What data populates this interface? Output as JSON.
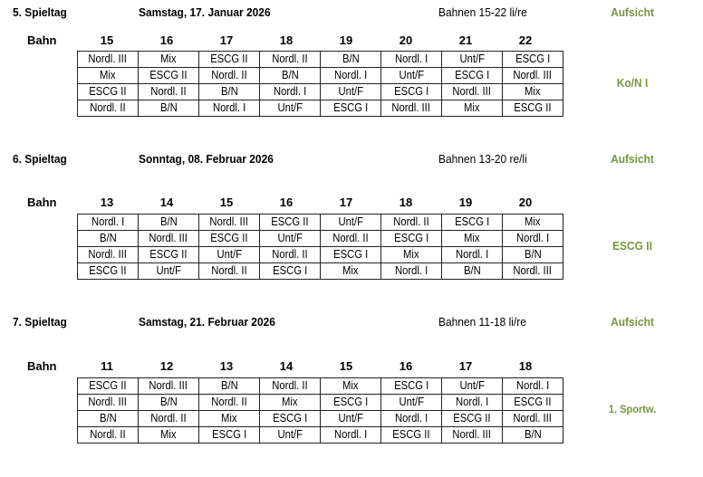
{
  "bahn_label": "Bahn",
  "sections": [
    {
      "title": "5. Spieltag",
      "date": "Samstag, 17. Januar 2026",
      "lanes": "Bahnen 15-22 li/re",
      "supervision_label": "Aufsicht",
      "supervisor": "Ko/N I",
      "columns": [
        "15",
        "16",
        "17",
        "18",
        "19",
        "20",
        "21",
        "22"
      ],
      "rows": [
        [
          "Nordl. III",
          "Mix",
          "ESCG II",
          "Nordl. II",
          "B/N",
          "Nordl. I",
          "Unt/F",
          "ESCG I"
        ],
        [
          "Mix",
          "ESCG II",
          "Nordl. II",
          "B/N",
          "Nordl. I",
          "Unt/F",
          "ESCG I",
          "Nordl. III"
        ],
        [
          "ESCG II",
          "Nordl. II",
          "B/N",
          "Nordl. I",
          "Unt/F",
          "ESCG I",
          "Nordl. III",
          "Mix"
        ],
        [
          "Nordl. II",
          "B/N",
          "Nordl. I",
          "Unt/F",
          "ESCG I",
          "Nordl. III",
          "Mix",
          "ESCG II"
        ]
      ]
    },
    {
      "title": "6. Spieltag",
      "date": "Sonntag, 08. Februar 2026",
      "lanes": "Bahnen 13-20 re/li",
      "supervision_label": "Aufsicht",
      "supervisor": "ESCG II",
      "columns": [
        "13",
        "14",
        "15",
        "16",
        "17",
        "18",
        "19",
        "20"
      ],
      "rows": [
        [
          "Nordl. I",
          "B/N",
          "Nordl. III",
          "ESCG II",
          "Unt/F",
          "Nordl. II",
          "ESCG I",
          "Mix"
        ],
        [
          "B/N",
          "Nordl. III",
          "ESCG II",
          "Unt/F",
          "Nordl. II",
          "ESCG I",
          "Mix",
          "Nordl. I"
        ],
        [
          "Nordl. III",
          "ESCG II",
          "Unt/F",
          "Nordl. II",
          "ESCG I",
          "Mix",
          "Nordl. I",
          "B/N"
        ],
        [
          "ESCG II",
          "Unt/F",
          "Nordl. II",
          "ESCG I",
          "Mix",
          "Nordl. I",
          "B/N",
          "Nordl. III"
        ]
      ]
    },
    {
      "title": "7. Spieltag",
      "date": "Samstag, 21. Februar 2026",
      "lanes": "Bahnen 11-18 li/re",
      "supervision_label": "Aufsicht",
      "supervisor": "1. Sportw.",
      "columns": [
        "11",
        "12",
        "13",
        "14",
        "15",
        "16",
        "17",
        "18"
      ],
      "rows": [
        [
          "ESCG II",
          "Nordl. III",
          "B/N",
          "Nordl. II",
          "Mix",
          "ESCG I",
          "Unt/F",
          "Nordl. I"
        ],
        [
          "Nordl. III",
          "B/N",
          "Nordl. II",
          "Mix",
          "ESCG I",
          "Unt/F",
          "Nordl. I",
          "ESCG II"
        ],
        [
          "B/N",
          "Nordl. II",
          "Mix",
          "ESCG I",
          "Unt/F",
          "Nordl. I",
          "ESCG II",
          "Nordl. III"
        ],
        [
          "Nordl. II",
          "Mix",
          "ESCG I",
          "Unt/F",
          "Nordl. I",
          "ESCG II",
          "Nordl. III",
          "B/N"
        ]
      ]
    }
  ]
}
